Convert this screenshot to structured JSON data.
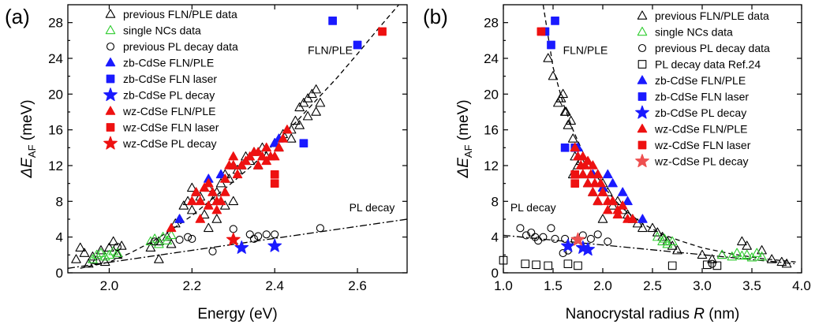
{
  "chart_data": [
    {
      "type": "scatter",
      "panel_label": "(a)",
      "xlabel": "Energy (eV)",
      "ylabel_main": "ΔE",
      "ylabel_sub": "AF",
      "ylabel_unit": " (meV)",
      "xlim": [
        1.9,
        2.72
      ],
      "ylim": [
        0,
        30
      ],
      "xticks": [
        2.0,
        2.2,
        2.4,
        2.6
      ],
      "xtick_labels": [
        "2.0",
        "2.2",
        "2.4",
        "2.6"
      ],
      "yticks": [
        0,
        4,
        8,
        12,
        16,
        20,
        24,
        28
      ],
      "ytick_labels": [
        "0",
        "4",
        "8",
        "12",
        "16",
        "20",
        "24",
        "28"
      ],
      "legend_position": "top-left",
      "annotations": [
        {
          "text": "FLN/PLE",
          "x": 2.48,
          "y": 24.5
        },
        {
          "text": "PL decay",
          "x": 2.58,
          "y": 6.9
        }
      ],
      "series": [
        {
          "name": "previous FLN/PLE data",
          "marker": "triangle-open",
          "color": "#000000",
          "x": [
            1.92,
            1.93,
            1.94,
            1.95,
            1.96,
            1.97,
            1.98,
            1.99,
            2.0,
            2.01,
            2.02,
            2.03,
            2.1,
            2.12,
            2.14,
            2.15,
            2.16,
            2.17,
            2.18,
            2.19,
            2.2,
            2.21,
            2.22,
            2.23,
            2.24,
            2.25,
            2.26,
            2.27,
            2.28,
            2.29,
            2.3,
            2.31,
            2.32,
            2.33,
            2.34,
            2.35,
            2.36,
            2.37,
            2.38,
            2.4,
            2.41,
            2.42,
            2.44,
            2.45,
            2.46,
            2.47,
            2.48,
            2.49,
            2.5,
            2.5,
            2.51,
            2.48,
            2.46,
            2.44,
            2.3,
            2.28,
            2.26,
            2.24,
            2.12,
            2.2
          ],
          "y": [
            1.5,
            2.8,
            2.2,
            1.0,
            1.8,
            1.4,
            2.5,
            1.2,
            2.8,
            3.5,
            2.0,
            3.0,
            2.8,
            1.5,
            4.0,
            3.2,
            5.5,
            6.0,
            7.5,
            8.0,
            7.0,
            9.0,
            8.5,
            6.5,
            9.5,
            8.0,
            9.0,
            10.0,
            11.0,
            10.5,
            12.0,
            11.5,
            12.0,
            13.0,
            12.5,
            13.5,
            12.0,
            14.0,
            13.0,
            14.5,
            14.0,
            15.5,
            16.0,
            17.0,
            18.5,
            19.0,
            19.5,
            20.0,
            20.5,
            18.0,
            19.0,
            17.5,
            16.5,
            15.0,
            8.0,
            7.5,
            6.0,
            5.0,
            3.5,
            9.5
          ]
        },
        {
          "name": "single NCs data",
          "marker": "triangle-open",
          "color": "#2ecc2e",
          "x": [
            1.96,
            1.97,
            1.98,
            1.99,
            2.0,
            2.01,
            2.02,
            2.1,
            2.11,
            2.12,
            2.13,
            2.14,
            2.15
          ],
          "y": [
            1.5,
            2.0,
            2.2,
            1.8,
            2.0,
            2.4,
            2.2,
            3.5,
            3.8,
            3.2,
            4.0,
            3.6,
            4.2
          ]
        },
        {
          "name": "previous PL decay data",
          "marker": "circle-open",
          "color": "#000000",
          "x": [
            2.02,
            2.11,
            2.17,
            2.19,
            2.2,
            2.25,
            2.3,
            2.34,
            2.35,
            2.36,
            2.38,
            2.4,
            2.51
          ],
          "y": [
            2.9,
            3.5,
            3.7,
            4.0,
            3.8,
            2.4,
            4.9,
            4.3,
            3.8,
            4.1,
            4.3,
            4.3,
            5.0
          ]
        },
        {
          "name": "zb-CdSe FLN/PLE",
          "marker": "triangle",
          "color": "#1a1aff",
          "x": [
            2.17,
            2.24,
            2.27,
            2.4,
            2.41
          ],
          "y": [
            6.0,
            10.5,
            11.0,
            14.5,
            15.0
          ]
        },
        {
          "name": "zb-CdSe FLN laser",
          "marker": "square",
          "color": "#1a1aff",
          "x": [
            2.47,
            2.54,
            2.6
          ],
          "y": [
            14.5,
            28.2,
            25.5
          ]
        },
        {
          "name": "zb-CdSe PL decay",
          "marker": "star",
          "color": "#1a1aff",
          "x": [
            2.32,
            2.4
          ],
          "y": [
            2.8,
            3.0
          ]
        },
        {
          "name": "wz-CdSe FLN/PLE",
          "marker": "triangle",
          "color": "#ee1111",
          "x": [
            2.15,
            2.2,
            2.21,
            2.22,
            2.23,
            2.24,
            2.25,
            2.26,
            2.27,
            2.28,
            2.29,
            2.3,
            2.31,
            2.32,
            2.33,
            2.34,
            2.35,
            2.36,
            2.37,
            2.38,
            2.39,
            2.4,
            2.41,
            2.42,
            2.43,
            2.22,
            2.24,
            2.26,
            2.28,
            2.3,
            2.36,
            2.38
          ],
          "y": [
            5.0,
            8.0,
            9.0,
            8.0,
            9.5,
            10.0,
            9.0,
            7.0,
            8.0,
            9.0,
            12.0,
            13.0,
            11.0,
            12.0,
            12.5,
            13.0,
            13.5,
            12.0,
            13.0,
            14.0,
            13.0,
            13.0,
            14.0,
            15.0,
            16.0,
            6.0,
            7.5,
            8.0,
            10.5,
            12.0,
            13.5,
            12.5
          ]
        },
        {
          "name": "wz-CdSe FLN laser",
          "marker": "square",
          "color": "#ee1111",
          "x": [
            2.4,
            2.4,
            2.66
          ],
          "y": [
            11.0,
            10.0,
            27.0
          ]
        },
        {
          "name": "wz-CdSe PL decay",
          "marker": "star",
          "color": "#ee1111",
          "x": [
            2.3
          ],
          "y": [
            3.7
          ]
        }
      ],
      "fits": [
        {
          "label": "FLN/PLE",
          "style": "dashed",
          "x": [
            1.93,
            2.0,
            2.05,
            2.1,
            2.15,
            2.2,
            2.25,
            2.3,
            2.35,
            2.4,
            2.45,
            2.5,
            2.55,
            2.6,
            2.65,
            2.7
          ],
          "y": [
            0.5,
            1.2,
            2.2,
            3.4,
            4.8,
            6.4,
            8.3,
            10.2,
            12.2,
            14.5,
            16.8,
            19.3,
            21.8,
            24.5,
            27.3,
            30.0
          ]
        },
        {
          "label": "PL decay",
          "style": "dash-dot",
          "x": [
            1.9,
            2.72
          ],
          "y": [
            0.5,
            6.0
          ]
        }
      ]
    },
    {
      "type": "scatter",
      "panel_label": "(b)",
      "xlabel_main": "Nanocrystal radius ",
      "xlabel_var": "R",
      "xlabel_unit": " (nm)",
      "ylabel_main": "ΔE",
      "ylabel_sub": "AF",
      "ylabel_unit": " (meV)",
      "xlim": [
        1.0,
        4.0
      ],
      "ylim": [
        0,
        30
      ],
      "xticks": [
        1.0,
        1.5,
        2.0,
        2.5,
        3.0,
        3.5,
        4.0
      ],
      "xtick_labels": [
        "1.0",
        "1.5",
        "2.0",
        "2.5",
        "3.0",
        "3.5",
        "4.0"
      ],
      "yticks": [
        0,
        4,
        8,
        12,
        16,
        20,
        24,
        28
      ],
      "ytick_labels": [
        "0",
        "4",
        "8",
        "12",
        "16",
        "20",
        "24",
        "28"
      ],
      "legend_position": "top-right",
      "annotations": [
        {
          "text": "FLN/PLE",
          "x": 1.6,
          "y": 24.5
        },
        {
          "text": "PL decay",
          "x": 1.07,
          "y": 6.9
        }
      ],
      "series": [
        {
          "name": "previous FLN/PLE data",
          "marker": "triangle-open",
          "color": "#000000",
          "x": [
            1.45,
            1.5,
            1.55,
            1.6,
            1.62,
            1.65,
            1.68,
            1.7,
            1.72,
            1.75,
            1.8,
            1.85,
            1.9,
            1.95,
            2.0,
            2.05,
            2.1,
            2.15,
            2.2,
            2.25,
            2.3,
            2.35,
            2.4,
            2.5,
            2.55,
            2.6,
            2.65,
            2.7,
            2.75,
            3.0,
            3.1,
            3.2,
            3.4,
            3.45,
            3.6,
            3.7,
            3.8,
            3.85,
            1.58,
            1.63,
            1.7,
            1.78,
            1.95,
            2.0
          ],
          "y": [
            24.0,
            22.0,
            19.0,
            20.0,
            18.0,
            16.5,
            17.0,
            15.0,
            13.0,
            12.0,
            11.0,
            10.0,
            9.0,
            11.0,
            10.0,
            9.0,
            7.5,
            8.0,
            7.0,
            6.5,
            6.0,
            5.5,
            5.0,
            5.0,
            4.5,
            4.0,
            3.5,
            3.0,
            2.5,
            2.0,
            1.5,
            2.0,
            3.5,
            3.0,
            2.5,
            1.5,
            1.2,
            1.0,
            19.5,
            18.0,
            11.0,
            12.5,
            8.0,
            6.0
          ]
        },
        {
          "name": "single NCs data",
          "marker": "triangle-open",
          "color": "#2ecc2e",
          "x": [
            2.55,
            2.6,
            2.62,
            2.65,
            2.7,
            3.2,
            3.3,
            3.35,
            3.4,
            3.45,
            3.5,
            3.55,
            3.6
          ],
          "y": [
            4.0,
            3.5,
            3.8,
            3.2,
            3.5,
            2.0,
            1.8,
            2.2,
            1.9,
            2.0,
            1.7,
            2.2,
            1.8
          ]
        },
        {
          "name": "previous PL decay data",
          "marker": "circle-open",
          "color": "#000000",
          "x": [
            1.17,
            1.23,
            1.28,
            1.32,
            1.35,
            1.4,
            1.48,
            1.52,
            1.6,
            1.62,
            1.65,
            1.72,
            1.8,
            1.88,
            1.95,
            2.05,
            3.1
          ],
          "y": [
            5.0,
            4.2,
            4.5,
            4.0,
            3.6,
            4.0,
            5.0,
            3.8,
            2.2,
            3.8,
            2.5,
            3.6,
            4.2,
            3.8,
            4.3,
            3.5,
            1.0
          ]
        },
        {
          "name": "PL decay data Ref.24",
          "marker": "square-open",
          "color": "#000000",
          "x": [
            1.0,
            1.22,
            1.33,
            1.45,
            1.65,
            1.75,
            2.7,
            3.05,
            3.15
          ],
          "y": [
            1.4,
            1.0,
            0.9,
            0.8,
            1.0,
            0.8,
            0.8,
            0.9,
            0.8
          ]
        },
        {
          "name": "zb-CdSe FLN/PLE",
          "marker": "triangle",
          "color": "#1a1aff",
          "x": [
            1.75,
            1.9,
            2.0,
            2.05,
            2.1,
            2.2,
            2.25,
            2.4
          ],
          "y": [
            14.0,
            11.0,
            9.5,
            11.0,
            10.0,
            9.0,
            8.0,
            6.0
          ]
        },
        {
          "name": "zb-CdSe FLN laser",
          "marker": "square",
          "color": "#1a1aff",
          "x": [
            1.42,
            1.48,
            1.52,
            1.62,
            1.72
          ],
          "y": [
            27.0,
            25.5,
            28.2,
            14.0,
            14.0
          ]
        },
        {
          "name": "zb-CdSe PL decay",
          "marker": "star",
          "color": "#1a1aff",
          "x": [
            1.65,
            1.8,
            1.85
          ],
          "y": [
            3.0,
            2.8,
            2.6
          ]
        },
        {
          "name": "wz-CdSe FLN/PLE",
          "marker": "triangle",
          "color": "#ee1111",
          "x": [
            1.72,
            1.75,
            1.78,
            1.8,
            1.82,
            1.85,
            1.88,
            1.9,
            1.92,
            1.95,
            1.98,
            2.0,
            2.05,
            2.1,
            2.15,
            2.2,
            2.25,
            2.3,
            1.8,
            1.85,
            1.9,
            1.95,
            2.0,
            2.05,
            2.1,
            2.15
          ],
          "y": [
            14.0,
            13.0,
            12.0,
            13.0,
            12.0,
            12.5,
            11.0,
            12.0,
            10.0,
            11.0,
            10.0,
            9.0,
            8.0,
            8.0,
            7.0,
            7.5,
            6.0,
            6.0,
            11.0,
            10.0,
            9.0,
            8.0,
            9.0,
            7.0,
            8.0,
            6.5
          ]
        },
        {
          "name": "wz-CdSe FLN laser",
          "marker": "square",
          "color": "#ee1111",
          "x": [
            1.38,
            1.72,
            1.72
          ],
          "y": [
            27.0,
            11.0,
            10.0
          ]
        },
        {
          "name": "wz-CdSe PL decay",
          "marker": "star",
          "color": "#ee5050",
          "x": [
            1.75
          ],
          "y": [
            3.7
          ]
        }
      ],
      "fits": [
        {
          "label": "FLN/PLE",
          "style": "dashed",
          "x": [
            1.4,
            1.45,
            1.5,
            1.6,
            1.7,
            1.8,
            1.9,
            2.0,
            2.1,
            2.2,
            2.4,
            2.6,
            2.8,
            3.0,
            3.3,
            3.6,
            3.95
          ],
          "y": [
            30.0,
            26.5,
            23.0,
            19.0,
            16.0,
            13.5,
            11.5,
            9.8,
            8.4,
            7.2,
            5.5,
            4.3,
            3.5,
            2.8,
            2.1,
            1.6,
            1.2
          ]
        },
        {
          "label": "PL decay",
          "style": "dash-dot",
          "x": [
            1.0,
            3.95
          ],
          "y": [
            4.2,
            1.0
          ]
        }
      ]
    }
  ]
}
